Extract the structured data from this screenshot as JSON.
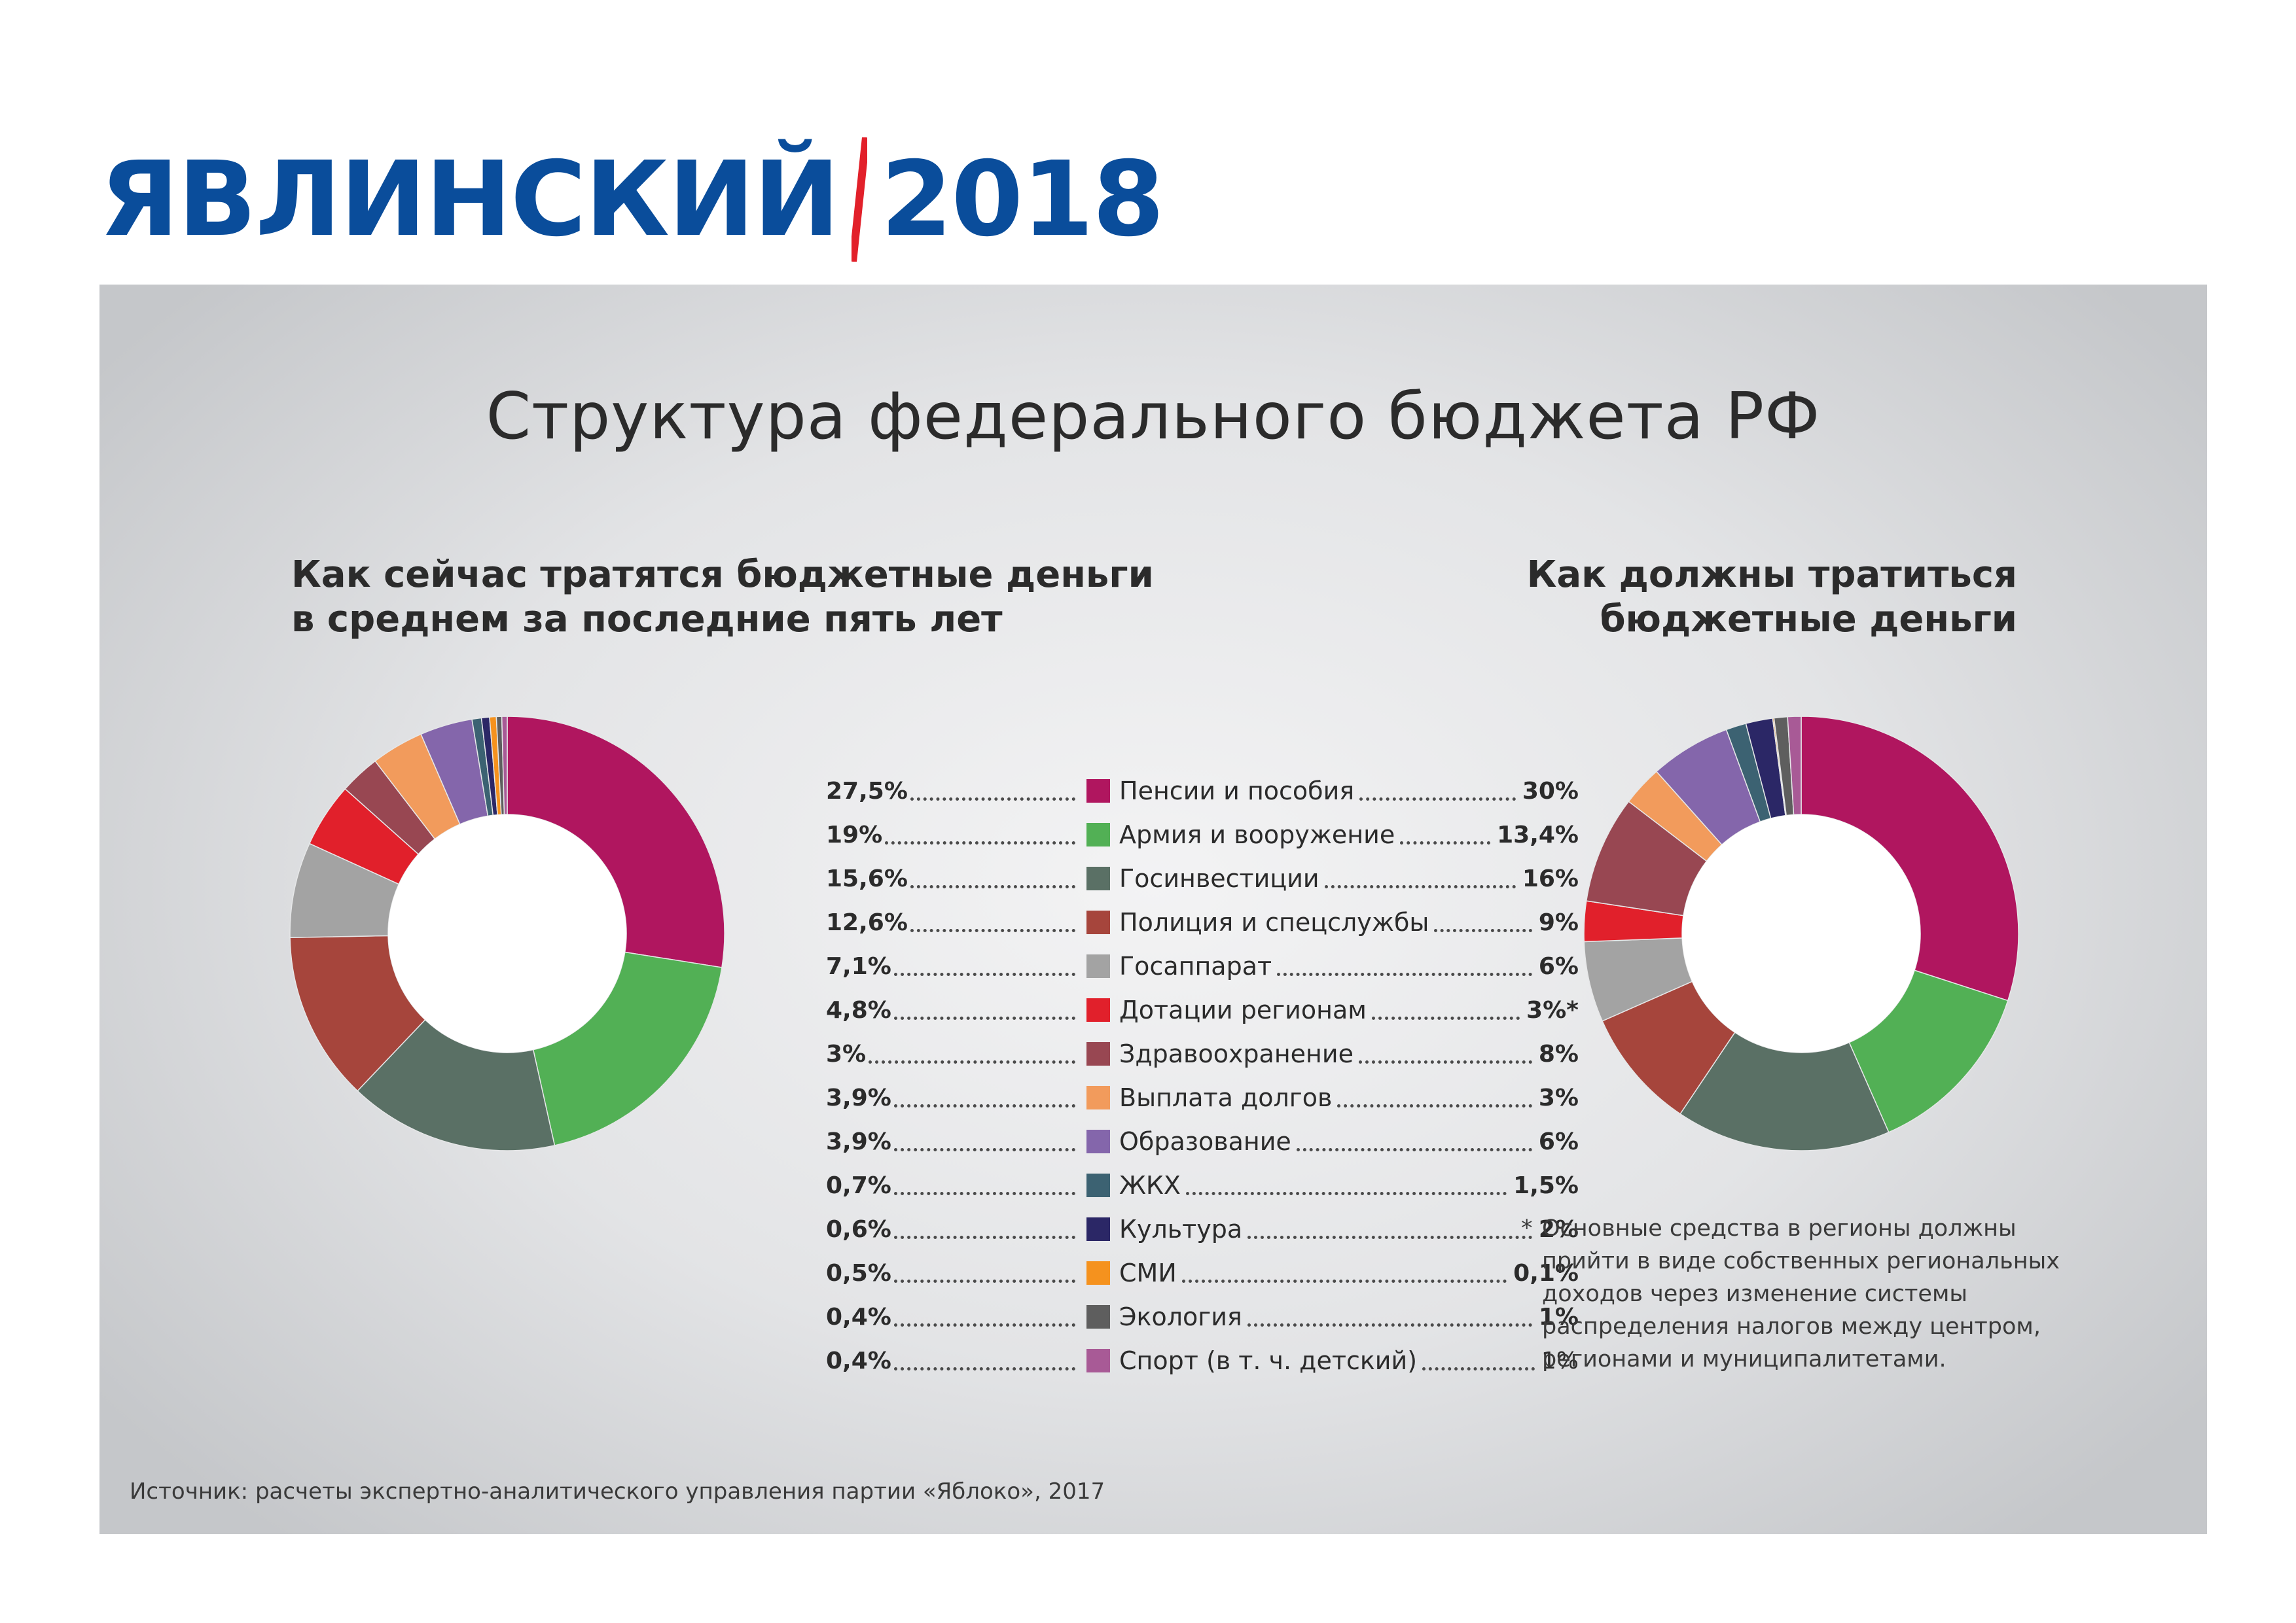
{
  "brand": {
    "name": "ЯВЛИНСКИЙ",
    "year": "2018",
    "name_color": "#0a4d9b",
    "slash_color": "#e2202a"
  },
  "title": "Структура федерального бюджета РФ",
  "subtitles": {
    "left": [
      "Как сейчас тратятся бюджетные деньги",
      "в среднем за последние пять лет"
    ],
    "right": [
      "Как должны тратиться",
      "бюджетные деньги"
    ]
  },
  "legend": [
    {
      "label": "Пенсии и пособия",
      "current": "27,5%",
      "proposed": "30%",
      "color": "#b0165f"
    },
    {
      "label": "Армия и вооружение",
      "current": "19%",
      "proposed": "13,4%",
      "color": "#52b055"
    },
    {
      "label": "Госинвестиции",
      "current": "15,6%",
      "proposed": "16%",
      "color": "#5a7065"
    },
    {
      "label": "Полиция и спецслужбы",
      "current": "12,6%",
      "proposed": "9%",
      "color": "#a6453c"
    },
    {
      "label": "Госаппарат",
      "current": "7,1%",
      "proposed": "6%",
      "color": "#a3a3a3"
    },
    {
      "label": "Дотации регионам",
      "current": "4,8%",
      "proposed": "3%*",
      "color": "#e1202b"
    },
    {
      "label": "Здравоохранение",
      "current": "3%",
      "proposed": "8%",
      "color": "#984752"
    },
    {
      "label": "Выплата долгов",
      "current": "3,9%",
      "proposed": "3%",
      "color": "#f29b5c"
    },
    {
      "label": "Образование",
      "current": "3,9%",
      "proposed": "6%",
      "color": "#8466ab"
    },
    {
      "label": "ЖКХ",
      "current": "0,7%",
      "proposed": "1,5%",
      "color": "#3c6272"
    },
    {
      "label": "Культура",
      "current": "0,6%",
      "proposed": "2%",
      "color": "#2b2766"
    },
    {
      "label": "СМИ",
      "current": "0,5%",
      "proposed": "0,1%",
      "color": "#f5921e"
    },
    {
      "label": "Экология",
      "current": "0,4%",
      "proposed": "1%",
      "color": "#5e5e5e"
    },
    {
      "label": "Спорт (в т. ч. детский)",
      "current": "0,4%",
      "proposed": "1%",
      "color": "#a85a96"
    }
  ],
  "chart_data": [
    {
      "type": "pie",
      "title": "Как сейчас тратятся бюджетные деньги в среднем за последние пять лет",
      "categories": [
        "Пенсии и пособия",
        "Армия и вооружение",
        "Госинвестиции",
        "Полиция и спецслужбы",
        "Госаппарат",
        "Дотации регионам",
        "Здравоохранение",
        "Выплата долгов",
        "Образование",
        "ЖКХ",
        "Культура",
        "СМИ",
        "Экология",
        "Спорт (в т. ч. детский)"
      ],
      "values": [
        27.5,
        19,
        15.6,
        12.6,
        7.1,
        4.8,
        3,
        3.9,
        3.9,
        0.7,
        0.6,
        0.5,
        0.4,
        0.4
      ],
      "colors": [
        "#b0165f",
        "#52b055",
        "#5a7065",
        "#a6453c",
        "#a3a3a3",
        "#e1202b",
        "#984752",
        "#f29b5c",
        "#8466ab",
        "#3c6272",
        "#2b2766",
        "#f5921e",
        "#5e5e5e",
        "#a85a96"
      ]
    },
    {
      "type": "pie",
      "title": "Как должны тратиться бюджетные деньги",
      "categories": [
        "Пенсии и пособия",
        "Армия и вооружение",
        "Госинвестиции",
        "Полиция и спецслужбы",
        "Госаппарат",
        "Дотации регионам",
        "Здравоохранение",
        "Выплата долгов",
        "Образование",
        "ЖКХ",
        "Культура",
        "СМИ",
        "Экология",
        "Спорт (в т. ч. детский)"
      ],
      "values": [
        30,
        13.4,
        16,
        9,
        6,
        3,
        8,
        3,
        6,
        1.5,
        2,
        0.1,
        1,
        1
      ],
      "colors": [
        "#b0165f",
        "#52b055",
        "#5a7065",
        "#a6453c",
        "#a3a3a3",
        "#e1202b",
        "#984752",
        "#f29b5c",
        "#8466ab",
        "#3c6272",
        "#2b2766",
        "#f5921e",
        "#5e5e5e",
        "#a85a96"
      ]
    }
  ],
  "footnote": {
    "mark": "*",
    "lines": [
      "Основные средства в регионы должны",
      "прийти в виде собственных региональных",
      "доходов через изменение системы",
      "распределения налогов между центром,",
      "регионами и муниципалитетами."
    ]
  },
  "source": "Источник: расчеты экспертно-аналитического управления партии «Яблоко», 2017"
}
